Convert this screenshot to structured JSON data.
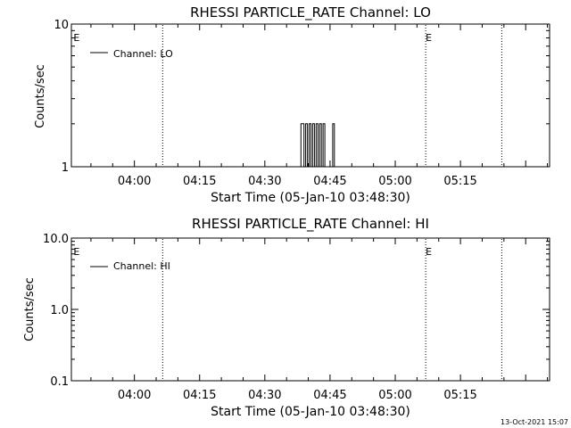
{
  "footer": {
    "timestamp": "13-Oct-2021 15:07"
  },
  "chart_data": [
    {
      "type": "line",
      "title": "RHESSI PARTICLE_RATE Channel: LO",
      "xlabel": "Start Time (05-Jan-10 03:48:30)",
      "ylabel": "Counts/sec",
      "y_scale": "log",
      "ylim": [
        1,
        10
      ],
      "ytick_labels": [
        {
          "value": 1,
          "label": "1"
        },
        {
          "value": 10,
          "label": "10"
        }
      ],
      "xlim_minutes": [
        -14.5,
        95.5
      ],
      "xtick_labels": [
        {
          "minute": 0,
          "label": "04:00"
        },
        {
          "minute": 15,
          "label": "04:15"
        },
        {
          "minute": 30,
          "label": "04:30"
        },
        {
          "minute": 45,
          "label": "04:45"
        },
        {
          "minute": 60,
          "label": "05:00"
        },
        {
          "minute": 75,
          "label": "05:15"
        }
      ],
      "legend": {
        "label": "Channel: LO",
        "position": "top-left"
      },
      "event_lines_minutes": [
        6.5,
        67.0,
        84.5
      ],
      "event_markers": [
        {
          "minute": -14.0,
          "label": "E"
        },
        {
          "minute": 67.0,
          "label": "E"
        }
      ],
      "series": [
        {
          "x_minutes": [
            38.0,
            38.3,
            38.3,
            39.0,
            39.0,
            39.4,
            39.4,
            39.8,
            39.8,
            40.2,
            40.2,
            40.6,
            40.6,
            41.0,
            41.0,
            41.4,
            41.4,
            41.8,
            41.8,
            42.2,
            42.2,
            42.6,
            42.6,
            43.0,
            43.0,
            43.4,
            43.4,
            43.8,
            43.8,
            44.3,
            44.3,
            45.6,
            45.6,
            46.0,
            46.0,
            46.4,
            46.4,
            47.0
          ],
          "y": [
            1,
            1,
            2,
            2,
            1,
            1,
            2,
            2,
            1,
            1,
            2,
            2,
            1,
            1,
            2,
            2,
            1,
            1,
            2,
            2,
            1,
            1,
            2,
            2,
            1,
            1,
            2,
            2,
            1,
            1,
            1,
            1,
            2,
            2,
            1,
            1,
            1,
            1
          ]
        }
      ]
    },
    {
      "type": "line",
      "title": "RHESSI PARTICLE_RATE Channel: HI",
      "xlabel": "Start Time (05-Jan-10 03:48:30)",
      "ylabel": "Counts/sec",
      "y_scale": "log",
      "ylim": [
        0.1,
        10
      ],
      "ytick_labels": [
        {
          "value": 0.1,
          "label": "0.1"
        },
        {
          "value": 1,
          "label": "1.0"
        },
        {
          "value": 10,
          "label": "10.0"
        }
      ],
      "xlim_minutes": [
        -14.5,
        95.5
      ],
      "xtick_labels": [
        {
          "minute": 0,
          "label": "04:00"
        },
        {
          "minute": 15,
          "label": "04:15"
        },
        {
          "minute": 30,
          "label": "04:30"
        },
        {
          "minute": 45,
          "label": "04:45"
        },
        {
          "minute": 60,
          "label": "05:00"
        },
        {
          "minute": 75,
          "label": "05:15"
        }
      ],
      "legend": {
        "label": "Channel: HI",
        "position": "top-left"
      },
      "event_lines_minutes": [
        6.5,
        67.0,
        84.5
      ],
      "event_markers": [
        {
          "minute": -14.0,
          "label": "E"
        },
        {
          "minute": 67.0,
          "label": "E"
        }
      ],
      "series": []
    }
  ]
}
